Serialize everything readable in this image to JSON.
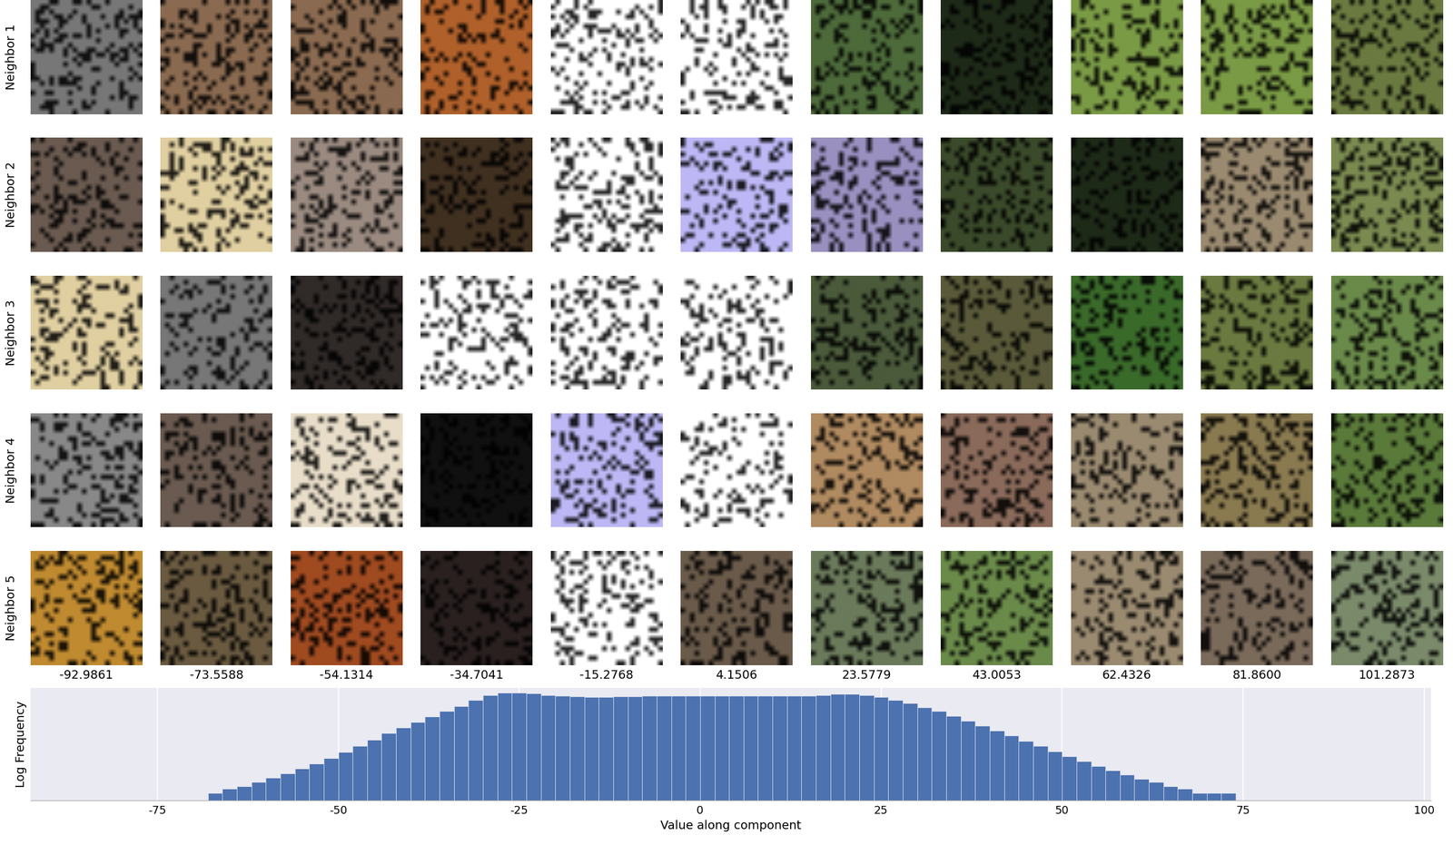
{
  "chart_data": {
    "type": "histogram",
    "xlabel": "Value along component",
    "ylabel": "Log Frequency",
    "bins": [
      -68,
      -66,
      -64,
      -62,
      -60,
      -58,
      -56,
      -54,
      -52,
      -50,
      -48,
      -46,
      -44,
      -42,
      -40,
      -38,
      -36,
      -34,
      -32,
      -30,
      -28,
      -26,
      -24,
      -22,
      -20,
      -18,
      -16,
      -14,
      -12,
      -10,
      -8,
      -6,
      -4,
      -2,
      0,
      2,
      4,
      6,
      8,
      10,
      12,
      14,
      16,
      18,
      20,
      22,
      24,
      26,
      28,
      30,
      32,
      34,
      36,
      38,
      40,
      42,
      44,
      46,
      48,
      50,
      52,
      54,
      56,
      58,
      60,
      62,
      64,
      66,
      68,
      70,
      72,
      74
    ],
    "counts": [
      2,
      3,
      4,
      6,
      9,
      14,
      22,
      35,
      60,
      110,
      200,
      380,
      700,
      1200,
      2100,
      3600,
      6000,
      10000,
      18000,
      30000,
      38000,
      38000,
      34000,
      30000,
      27000,
      26000,
      25000,
      25000,
      26000,
      26000,
      27000,
      27000,
      27000,
      27000,
      27000,
      27000,
      27000,
      27000,
      27000,
      27000,
      27000,
      28000,
      30000,
      33000,
      32000,
      29000,
      24000,
      18000,
      13000,
      9000,
      6000,
      3800,
      2400,
      1500,
      900,
      550,
      330,
      200,
      120,
      75,
      45,
      28,
      18,
      12,
      8,
      6,
      4,
      3,
      2,
      2,
      2
    ],
    "color": "#4c72b0",
    "log": "y",
    "xlim": [
      -92.5,
      101
    ],
    "xticks": [
      -75,
      -50,
      -25,
      0,
      25,
      50,
      75,
      100
    ],
    "ylim": [
      1,
      60000
    ],
    "yticks": [],
    "tick_labels": "x",
    "grid": true
  },
  "image_grid": {
    "row_labels": [
      "Neighbor 1",
      "Neighbor 2",
      "Neighbor 3",
      "Neighbor 4",
      "Neighbor 5"
    ],
    "column_labels": [
      "-92.9861",
      "-73.5588",
      "-54.1314",
      "-34.7041",
      "-15.2768",
      "4.1506",
      "23.5779",
      "43.0053",
      "62.4326",
      "81.8600",
      "101.2873"
    ]
  }
}
